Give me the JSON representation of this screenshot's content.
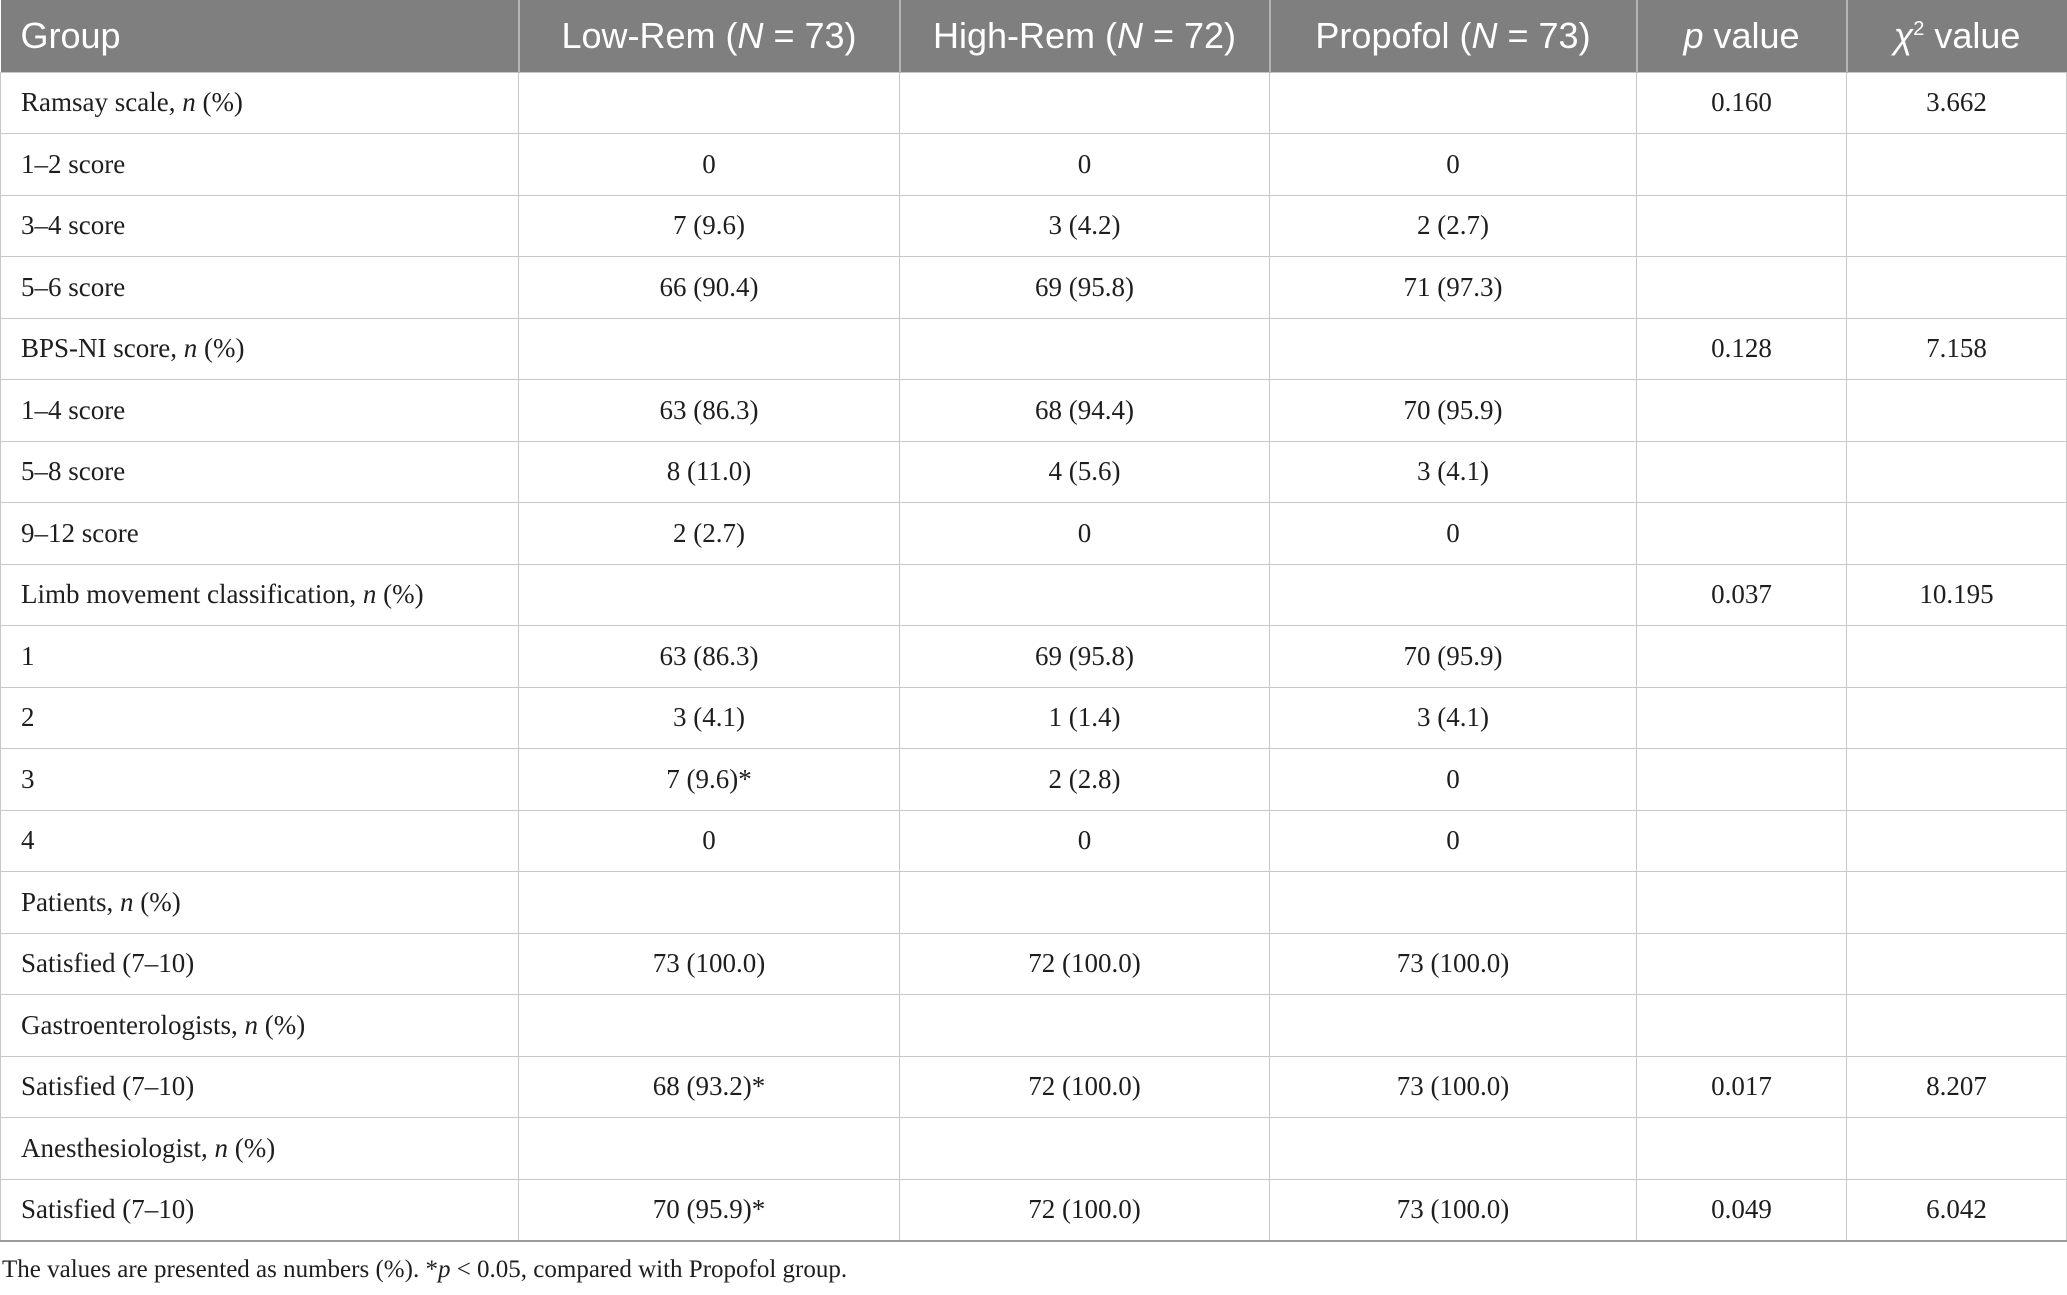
{
  "header": {
    "group": "Group",
    "low_rem_prefix": "Low-Rem (",
    "low_rem_n": "N",
    "low_rem_suffix": " = 73)",
    "high_rem_prefix": "High-Rem (",
    "high_rem_n": "N",
    "high_rem_suffix": " = 72)",
    "propofol_prefix": "Propofol (",
    "propofol_n": "N",
    "propofol_suffix": " = 73)",
    "p_symbol": "p",
    "p_suffix": " value",
    "chi_symbol": "χ",
    "chi_sup": "2",
    "chi_suffix": " value"
  },
  "rows": [
    {
      "label": "Ramsay scale, ",
      "label_italic": "n",
      "label_tail": " (%)",
      "low": "",
      "high": "",
      "propofol": "",
      "p": "0.160",
      "chi": "3.662"
    },
    {
      "label": "1–2 score",
      "label_italic": "",
      "label_tail": "",
      "low": "0",
      "high": "0",
      "propofol": "0",
      "p": "",
      "chi": ""
    },
    {
      "label": "3–4 score",
      "label_italic": "",
      "label_tail": "",
      "low": "7 (9.6)",
      "high": "3 (4.2)",
      "propofol": "2 (2.7)",
      "p": "",
      "chi": ""
    },
    {
      "label": "5–6 score",
      "label_italic": "",
      "label_tail": "",
      "low": "66 (90.4)",
      "high": "69 (95.8)",
      "propofol": "71 (97.3)",
      "p": "",
      "chi": ""
    },
    {
      "label": "BPS-NI score, ",
      "label_italic": "n",
      "label_tail": " (%)",
      "low": "",
      "high": "",
      "propofol": "",
      "p": "0.128",
      "chi": "7.158"
    },
    {
      "label": "1–4 score",
      "label_italic": "",
      "label_tail": "",
      "low": "63 (86.3)",
      "high": "68 (94.4)",
      "propofol": "70 (95.9)",
      "p": "",
      "chi": ""
    },
    {
      "label": "5–8 score",
      "label_italic": "",
      "label_tail": "",
      "low": "8 (11.0)",
      "high": "4 (5.6)",
      "propofol": "3 (4.1)",
      "p": "",
      "chi": ""
    },
    {
      "label": "9–12 score",
      "label_italic": "",
      "label_tail": "",
      "low": "2 (2.7)",
      "high": "0",
      "propofol": "0",
      "p": "",
      "chi": ""
    },
    {
      "label": "Limb movement classification, ",
      "label_italic": "n",
      "label_tail": " (%)",
      "low": "",
      "high": "",
      "propofol": "",
      "p": "0.037",
      "chi": "10.195"
    },
    {
      "label": "1",
      "label_italic": "",
      "label_tail": "",
      "low": "63 (86.3)",
      "high": "69 (95.8)",
      "propofol": "70 (95.9)",
      "p": "",
      "chi": ""
    },
    {
      "label": "2",
      "label_italic": "",
      "label_tail": "",
      "low": "3 (4.1)",
      "high": "1 (1.4)",
      "propofol": "3 (4.1)",
      "p": "",
      "chi": ""
    },
    {
      "label": "3",
      "label_italic": "",
      "label_tail": "",
      "low": "7 (9.6)*",
      "high": "2 (2.8)",
      "propofol": "0",
      "p": "",
      "chi": ""
    },
    {
      "label": "4",
      "label_italic": "",
      "label_tail": "",
      "low": "0",
      "high": "0",
      "propofol": "0",
      "p": "",
      "chi": ""
    },
    {
      "label": "Patients, ",
      "label_italic": "n",
      "label_tail": " (%)",
      "low": "",
      "high": "",
      "propofol": "",
      "p": "",
      "chi": ""
    },
    {
      "label": "Satisfied (7–10)",
      "label_italic": "",
      "label_tail": "",
      "low": "73 (100.0)",
      "high": "72 (100.0)",
      "propofol": "73 (100.0)",
      "p": "",
      "chi": ""
    },
    {
      "label": "Gastroenterologists, ",
      "label_italic": "n",
      "label_tail": " (%)",
      "low": "",
      "high": "",
      "propofol": "",
      "p": "",
      "chi": ""
    },
    {
      "label": "Satisfied (7–10)",
      "label_italic": "",
      "label_tail": "",
      "low": "68 (93.2)*",
      "high": "72 (100.0)",
      "propofol": "73 (100.0)",
      "p": "0.017",
      "chi": "8.207"
    },
    {
      "label": "Anesthesiologist, ",
      "label_italic": "n",
      "label_tail": " (%)",
      "low": "",
      "high": "",
      "propofol": "",
      "p": "",
      "chi": ""
    },
    {
      "label": "Satisfied (7–10)",
      "label_italic": "",
      "label_tail": "",
      "low": "70 (95.9)*",
      "high": "72 (100.0)",
      "propofol": "73 (100.0)",
      "p": "0.049",
      "chi": "6.042"
    }
  ],
  "footnote": {
    "part1": "The values are presented as numbers (%). *",
    "p_symbol": "p",
    "part2": " < 0.05, compared with Propofol group."
  }
}
